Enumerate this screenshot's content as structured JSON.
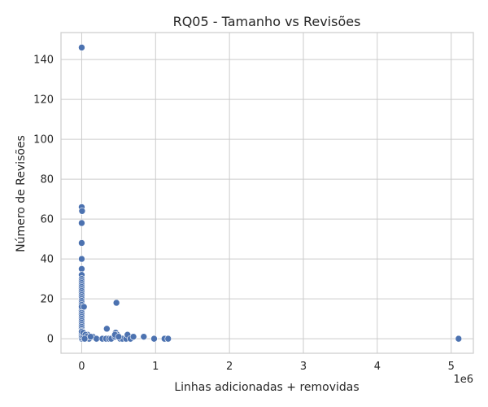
{
  "chart_data": {
    "type": "scatter",
    "title": "RQ05 - Tamanho vs Revisões",
    "xlabel": "Linhas adicionadas + removidas",
    "ylabel": "Número de Revisões",
    "x_offset_label": "1e6",
    "xlim": [
      -0.28,
      5.3
    ],
    "ylim": [
      -7.3,
      153.5
    ],
    "x_ticks": [
      0,
      1,
      2,
      3,
      4,
      5
    ],
    "x_tick_labels": [
      "0",
      "1",
      "2",
      "3",
      "4",
      "5"
    ],
    "y_ticks": [
      0,
      20,
      40,
      60,
      80,
      100,
      120,
      140
    ],
    "y_tick_labels": [
      "0",
      "20",
      "40",
      "60",
      "80",
      "100",
      "120",
      "140"
    ],
    "grid": true,
    "legend": "none",
    "point_color": "#4c72b0",
    "series": [
      {
        "x": [
          0.0,
          0.0,
          0.005,
          0.0,
          0.0,
          0.0,
          0.0,
          0.0,
          0.0,
          0.0,
          0.0,
          0.0,
          0.0,
          0.0,
          0.0,
          0.0,
          0.0,
          0.0,
          0.0,
          0.0,
          0.0,
          0.0,
          0.0,
          0.0,
          0.0,
          0.0,
          0.0,
          0.0,
          0.0,
          0.0,
          0.0,
          0.0,
          0.0,
          0.0,
          0.0,
          0.0,
          0.0,
          0.0,
          0.0,
          0.0,
          0.0,
          0.0,
          0.0,
          0.03,
          0.47,
          0.34,
          0.02,
          0.05,
          0.08,
          0.1,
          0.15,
          0.2,
          0.28,
          0.33,
          0.37,
          0.4,
          0.45,
          0.46,
          0.48,
          0.5,
          0.52,
          0.55,
          0.6,
          0.62,
          0.66,
          0.7,
          0.84,
          0.98,
          1.12,
          1.17,
          5.1,
          0.02,
          0.05,
          0.07,
          0.12,
          0.45,
          0.5,
          0.04
        ],
        "y": [
          146,
          66,
          64,
          58,
          48,
          40,
          35,
          32,
          30,
          29,
          28,
          27,
          26,
          25,
          24,
          23,
          22,
          21,
          20,
          19,
          18,
          17,
          15,
          14,
          13,
          12,
          11,
          10,
          9,
          8,
          7,
          6,
          5,
          4,
          3,
          2,
          1,
          0,
          0.5,
          1.5,
          2.5,
          3.5,
          16,
          16,
          18,
          5,
          1,
          0,
          2,
          0,
          1,
          0,
          0,
          0,
          0,
          0,
          1,
          3,
          2,
          1,
          0,
          0,
          0,
          2,
          0,
          1,
          1,
          0,
          0,
          0,
          0,
          3,
          2,
          1,
          1,
          2,
          1,
          0
        ]
      }
    ]
  }
}
